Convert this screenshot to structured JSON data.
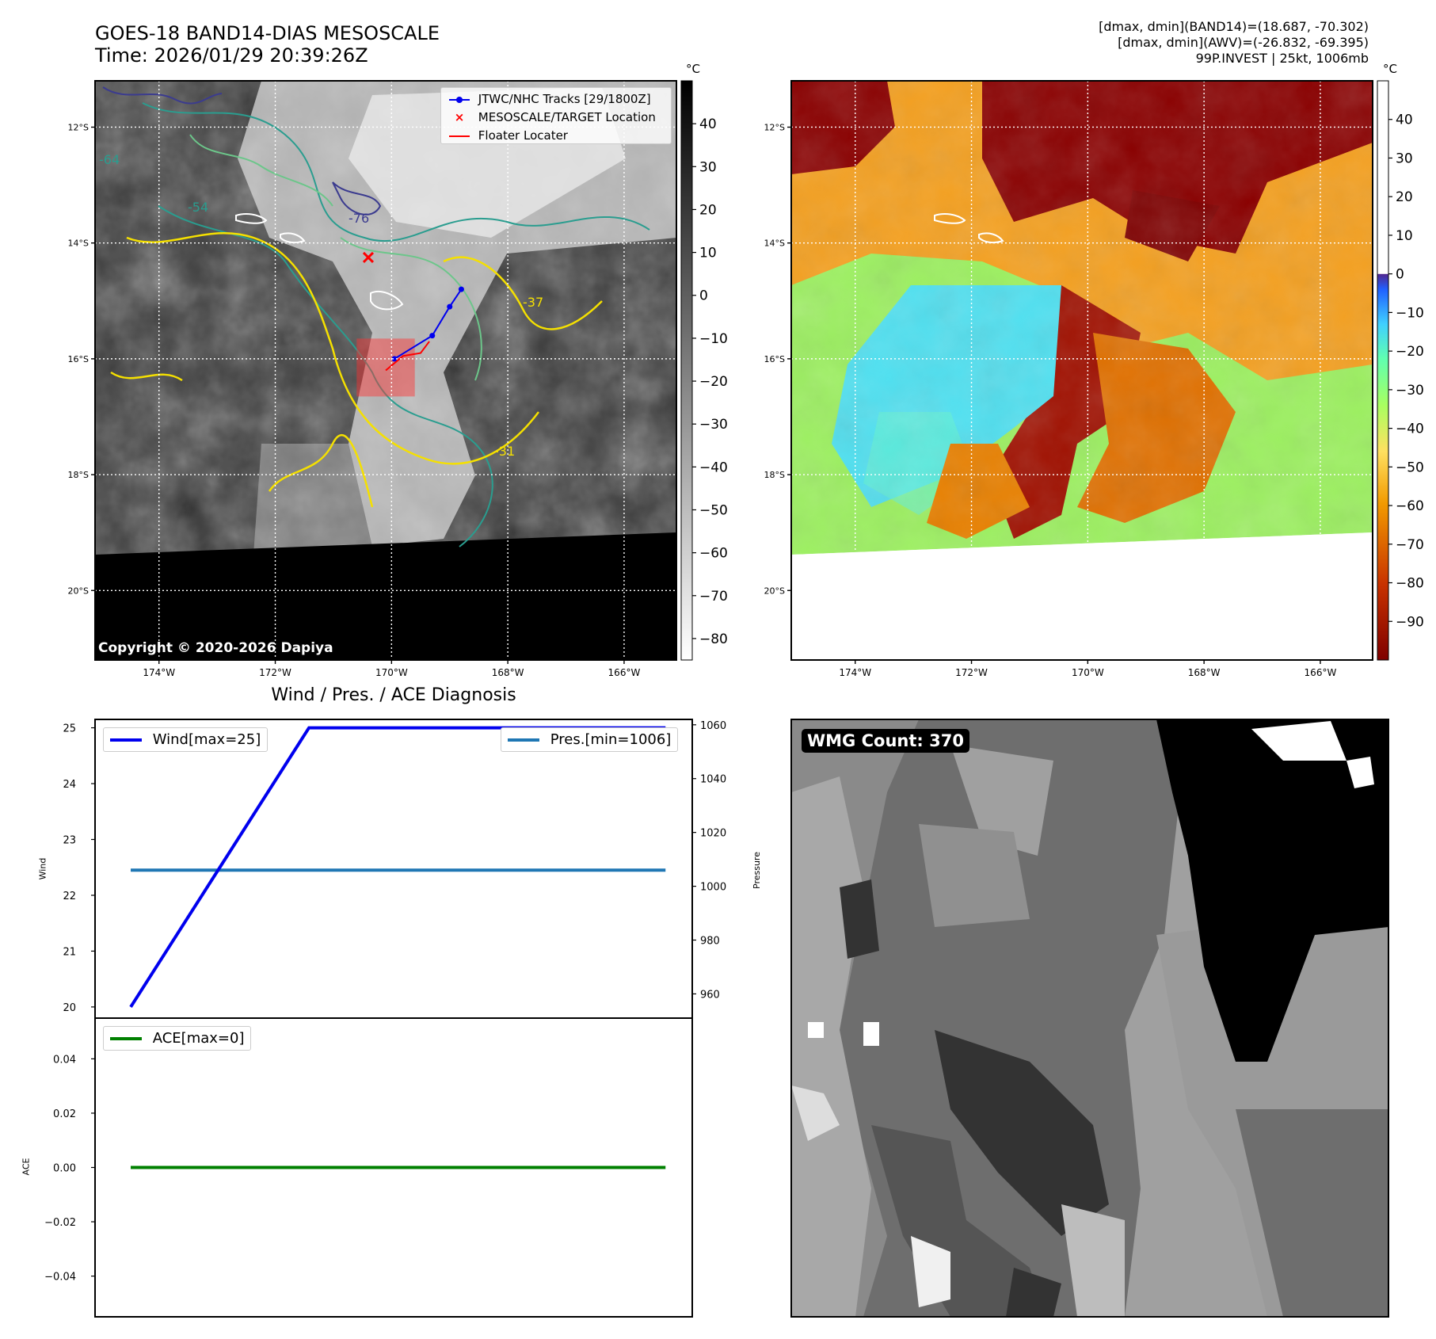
{
  "header": {
    "title_line1": "GOES-18 BAND14-DIAS MESOSCALE",
    "title_line2": "Time: 2026/01/29 20:39:26Z",
    "info_line1": "[dmax, dmin](BAND14)=(18.687, -70.302)",
    "info_line2": "[dmax, dmin](AWV)=(-26.832, -69.395)",
    "info_line3": "99P.INVEST | 25kt, 1006mb"
  },
  "map": {
    "lat_labels": [
      "12°S",
      "14°S",
      "16°S",
      "18°S",
      "20°S"
    ],
    "lon_labels": [
      "174°W",
      "172°W",
      "170°W",
      "168°W",
      "166°W"
    ],
    "lat_range": [
      -21.2,
      -11.2
    ],
    "lon_range": [
      -175.1,
      -165.1
    ],
    "legend": [
      "JTWC/NHC Tracks [29/1800Z]",
      "MESOSCALE/TARGET Location",
      "Floater Locater"
    ],
    "copyright": "Copyright © 2020-2026 Dapiya",
    "contour_labels": [
      "-64",
      "-54",
      "-76",
      "-37",
      "-31"
    ],
    "track": [
      [
        -168.8,
        -14.8
      ],
      [
        -169.0,
        -15.1
      ],
      [
        -169.3,
        -15.6
      ],
      [
        -169.95,
        -16.0
      ]
    ],
    "floater_track": [
      [
        -169.35,
        -15.7
      ],
      [
        -169.5,
        -15.9
      ],
      [
        -169.8,
        -15.95
      ],
      [
        -170.1,
        -16.2
      ]
    ],
    "target": [
      -170.4,
      -14.25
    ],
    "floater_box": [
      [
        -170.6,
        -15.65
      ],
      [
        -169.6,
        -16.65
      ]
    ]
  },
  "colorbar_gray": {
    "unit": "°C",
    "ticks": [
      "40",
      "30",
      "20",
      "10",
      "0",
      "−10",
      "−20",
      "−30",
      "−40",
      "−50",
      "−60",
      "−70",
      "−80"
    ],
    "range": [
      -85,
      50
    ]
  },
  "colorbar_color": {
    "unit": "°C",
    "ticks": [
      "40",
      "30",
      "20",
      "10",
      "0",
      "−10",
      "−20",
      "−30",
      "−40",
      "−50",
      "−60",
      "−70",
      "−80",
      "−90"
    ],
    "range": [
      -100,
      50
    ],
    "colors": [
      "#7f0000",
      "#c84000",
      "#f4a000",
      "#ffe060",
      "#a8ff60",
      "#50e8ff",
      "#3070ff",
      "#4a2a90",
      "#ffffff"
    ]
  },
  "chart_data": [
    {
      "type": "line",
      "title": "Wind / Pres. / ACE Diagnosis",
      "ylabel": "Wind",
      "ylabel_right": "Pressure",
      "x": [
        0,
        1,
        2,
        3
      ],
      "series": [
        {
          "name": "Wind[max=25]",
          "axis": "left",
          "color": "#0000ee",
          "values": [
            20,
            25,
            25,
            25
          ]
        },
        {
          "name": "Pres.[min=1006]",
          "axis": "right",
          "color": "#1f77b4",
          "values": [
            1006,
            1006,
            1006,
            1006
          ]
        }
      ],
      "ylim": [
        19.8,
        25.15
      ],
      "ylim_right": [
        951,
        1062
      ],
      "yticks": [
        "25",
        "24",
        "23",
        "22",
        "21",
        "20"
      ],
      "yticks_right": [
        "1060",
        "1040",
        "1020",
        "1000",
        "980",
        "960"
      ]
    },
    {
      "type": "line",
      "ylabel": "ACE",
      "x": [
        0,
        1,
        2,
        3
      ],
      "series": [
        {
          "name": "ACE[max=0]",
          "color": "#008000",
          "values": [
            0,
            0,
            0,
            0
          ]
        }
      ],
      "ylim": [
        -0.055,
        0.055
      ],
      "yticks": [
        "0.04",
        "0.02",
        "0.00",
        "−0.02",
        "−0.04"
      ]
    }
  ],
  "wmg": {
    "label": "WMG Count: 370",
    "levels": [
      "#000000",
      "#333333",
      "#555555",
      "#6e6e6e",
      "#8a8a8a",
      "#a0a0a0",
      "#bdbdbd",
      "#ffffff"
    ]
  }
}
